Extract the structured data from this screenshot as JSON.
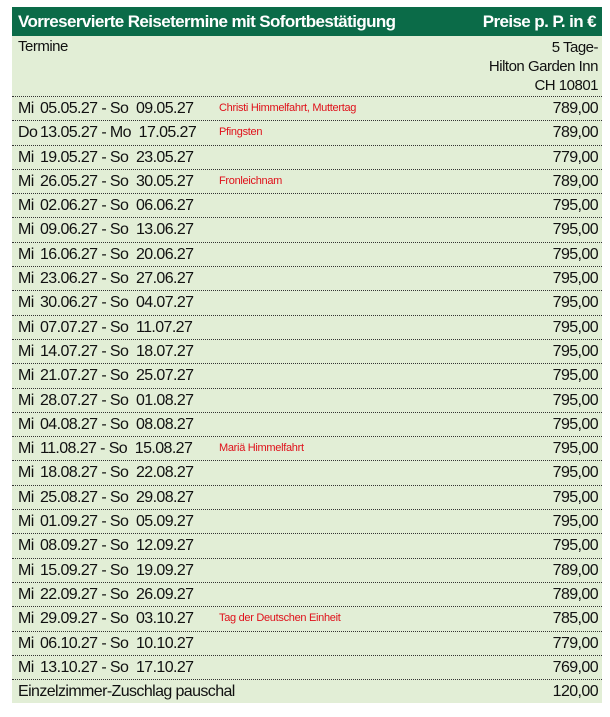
{
  "header": {
    "title": "Vorreservierte Reisetermine mit Sofortbestätigung",
    "price_note": "Preise p. P. in €",
    "col_dates": "Termine",
    "col_price_lines": [
      "5 Tage-",
      "Hilton Garden Inn",
      "CH 10801"
    ]
  },
  "colors": {
    "header_bg": "#0b6b48",
    "table_bg": "#e2eed6",
    "holiday": "#e0101a"
  },
  "rows": [
    {
      "d1": "Mi",
      "date1": "05.05.27",
      "d2": "So",
      "date2": "09.05.27",
      "holiday": "Christi Himmelfahrt, Muttertag",
      "price": "789,00"
    },
    {
      "d1": "Do",
      "date1": "13.05.27",
      "d2": "Mo",
      "date2": "17.05.27",
      "holiday": "Pfingsten",
      "price": "789,00"
    },
    {
      "d1": "Mi",
      "date1": "19.05.27",
      "d2": "So",
      "date2": "23.05.27",
      "holiday": "",
      "price": "779,00"
    },
    {
      "d1": "Mi",
      "date1": "26.05.27",
      "d2": "So",
      "date2": "30.05.27",
      "holiday": "Fronleichnam",
      "price": "789,00"
    },
    {
      "d1": "Mi",
      "date1": "02.06.27",
      "d2": "So",
      "date2": "06.06.27",
      "holiday": "",
      "price": "795,00"
    },
    {
      "d1": "Mi",
      "date1": "09.06.27",
      "d2": "So",
      "date2": "13.06.27",
      "holiday": "",
      "price": "795,00"
    },
    {
      "d1": "Mi",
      "date1": "16.06.27",
      "d2": "So",
      "date2": "20.06.27",
      "holiday": "",
      "price": "795,00"
    },
    {
      "d1": "Mi",
      "date1": "23.06.27",
      "d2": "So",
      "date2": "27.06.27",
      "holiday": "",
      "price": "795,00"
    },
    {
      "d1": "Mi",
      "date1": "30.06.27",
      "d2": "So",
      "date2": "04.07.27",
      "holiday": "",
      "price": "795,00"
    },
    {
      "d1": "Mi",
      "date1": "07.07.27",
      "d2": "So",
      "date2": "11.07.27",
      "holiday": "",
      "price": "795,00"
    },
    {
      "d1": "Mi",
      "date1": "14.07.27",
      "d2": "So",
      "date2": "18.07.27",
      "holiday": "",
      "price": "795,00"
    },
    {
      "d1": "Mi",
      "date1": "21.07.27",
      "d2": "So",
      "date2": "25.07.27",
      "holiday": "",
      "price": "795,00"
    },
    {
      "d1": "Mi",
      "date1": "28.07.27",
      "d2": "So",
      "date2": "01.08.27",
      "holiday": "",
      "price": "795,00"
    },
    {
      "d1": "Mi",
      "date1": "04.08.27",
      "d2": "So",
      "date2": "08.08.27",
      "holiday": "",
      "price": "795,00"
    },
    {
      "d1": "Mi",
      "date1": "11.08.27",
      "d2": "So",
      "date2": "15.08.27",
      "holiday": "Mariä Himmelfahrt",
      "price": "795,00"
    },
    {
      "d1": "Mi",
      "date1": "18.08.27",
      "d2": "So",
      "date2": "22.08.27",
      "holiday": "",
      "price": "795,00"
    },
    {
      "d1": "Mi",
      "date1": "25.08.27",
      "d2": "So",
      "date2": "29.08.27",
      "holiday": "",
      "price": "795,00"
    },
    {
      "d1": "Mi",
      "date1": "01.09.27",
      "d2": "So",
      "date2": "05.09.27",
      "holiday": "",
      "price": "795,00"
    },
    {
      "d1": "Mi",
      "date1": "08.09.27",
      "d2": "So",
      "date2": "12.09.27",
      "holiday": "",
      "price": "795,00"
    },
    {
      "d1": "Mi",
      "date1": "15.09.27",
      "d2": "So",
      "date2": "19.09.27",
      "holiday": "",
      "price": "789,00"
    },
    {
      "d1": "Mi",
      "date1": "22.09.27",
      "d2": "So",
      "date2": "26.09.27",
      "holiday": "",
      "price": "789,00"
    },
    {
      "d1": "Mi",
      "date1": "29.09.27",
      "d2": "So",
      "date2": "03.10.27",
      "holiday": "Tag der Deutschen Einheit",
      "price": "785,00"
    },
    {
      "d1": "Mi",
      "date1": "06.10.27",
      "d2": "So",
      "date2": "10.10.27",
      "holiday": "",
      "price": "779,00"
    },
    {
      "d1": "Mi",
      "date1": "13.10.27",
      "d2": "So",
      "date2": "17.10.27",
      "holiday": "",
      "price": "769,00"
    }
  ],
  "surcharge": {
    "label": "Einzelzimmer-Zuschlag pauschal",
    "price": "120,00"
  }
}
